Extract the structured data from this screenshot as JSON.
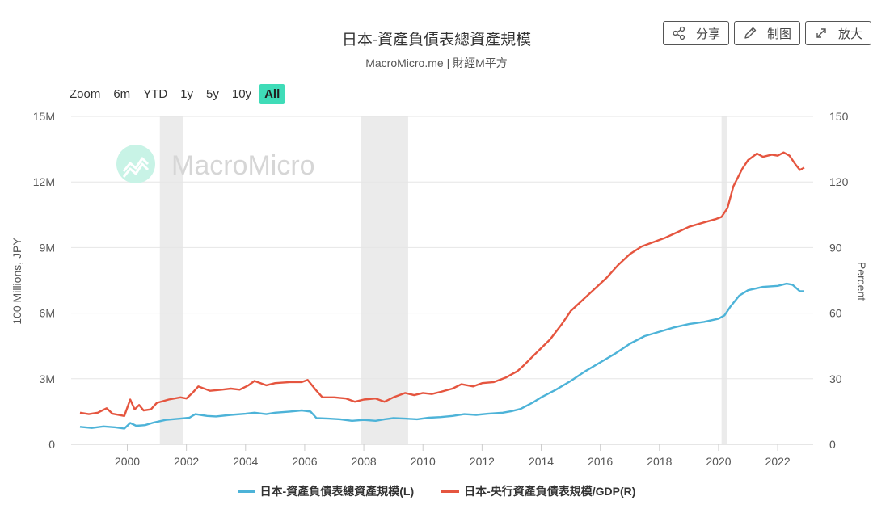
{
  "header": {
    "title": "日本-資產負債表總資產規模",
    "subtitle": "MacroMicro.me | 財經M平方"
  },
  "toolbar": {
    "share_label": "分享",
    "draw_label": "制图",
    "zoom_label": "放大"
  },
  "range_selector": {
    "label": "Zoom",
    "options": [
      "6m",
      "YTD",
      "1y",
      "5y",
      "10y",
      "All"
    ],
    "selected": "All"
  },
  "watermark": "MacroMicro",
  "colors": {
    "left_series": "#4db3d8",
    "right_series": "#e5553f",
    "recession": "#ebebeb",
    "accent": "#3fdcb8"
  },
  "chart_data": {
    "type": "line",
    "xlabel": "",
    "x_ticks": [
      "2000",
      "2002",
      "2004",
      "2006",
      "2008",
      "2010",
      "2012",
      "2014",
      "2016",
      "2018",
      "2020",
      "2022"
    ],
    "x_range": [
      1998.1,
      2023.2
    ],
    "y_left": {
      "label": "100 Millions, JPY",
      "ticks": [
        "0",
        "3M",
        "6M",
        "9M",
        "12M",
        "15M"
      ],
      "range": [
        0,
        15
      ]
    },
    "y_right": {
      "label": "Percent",
      "ticks": [
        "0",
        "30",
        "60",
        "90",
        "120",
        "150"
      ],
      "range": [
        0,
        150
      ]
    },
    "recession_bands": [
      [
        2001.1,
        2001.9
      ],
      [
        2007.9,
        2009.5
      ],
      [
        2020.1,
        2020.3
      ]
    ],
    "legend_position": "bottom-center",
    "grid": true,
    "series": [
      {
        "name": "日本-資產負債表總資產規模(L)",
        "axis": "left",
        "unit": "M (100 Millions JPY)",
        "points": [
          [
            1998.4,
            0.8
          ],
          [
            1998.8,
            0.75
          ],
          [
            1999.2,
            0.82
          ],
          [
            1999.6,
            0.78
          ],
          [
            1999.9,
            0.72
          ],
          [
            2000.1,
            0.98
          ],
          [
            2000.3,
            0.85
          ],
          [
            2000.6,
            0.88
          ],
          [
            2000.9,
            1.0
          ],
          [
            2001.3,
            1.12
          ],
          [
            2001.8,
            1.18
          ],
          [
            2002.1,
            1.22
          ],
          [
            2002.3,
            1.38
          ],
          [
            2002.7,
            1.3
          ],
          [
            2003.0,
            1.28
          ],
          [
            2003.5,
            1.35
          ],
          [
            2004.0,
            1.4
          ],
          [
            2004.3,
            1.45
          ],
          [
            2004.7,
            1.38
          ],
          [
            2005.0,
            1.45
          ],
          [
            2005.5,
            1.5
          ],
          [
            2005.9,
            1.55
          ],
          [
            2006.2,
            1.5
          ],
          [
            2006.4,
            1.2
          ],
          [
            2006.8,
            1.18
          ],
          [
            2007.2,
            1.15
          ],
          [
            2007.6,
            1.08
          ],
          [
            2008.0,
            1.12
          ],
          [
            2008.4,
            1.08
          ],
          [
            2008.7,
            1.15
          ],
          [
            2009.0,
            1.2
          ],
          [
            2009.4,
            1.18
          ],
          [
            2009.8,
            1.15
          ],
          [
            2010.2,
            1.22
          ],
          [
            2010.6,
            1.25
          ],
          [
            2011.0,
            1.3
          ],
          [
            2011.4,
            1.38
          ],
          [
            2011.8,
            1.35
          ],
          [
            2012.2,
            1.4
          ],
          [
            2012.7,
            1.45
          ],
          [
            2013.0,
            1.52
          ],
          [
            2013.3,
            1.62
          ],
          [
            2013.7,
            1.9
          ],
          [
            2014.0,
            2.15
          ],
          [
            2014.5,
            2.5
          ],
          [
            2015.0,
            2.9
          ],
          [
            2015.5,
            3.35
          ],
          [
            2016.0,
            3.75
          ],
          [
            2016.5,
            4.15
          ],
          [
            2017.0,
            4.6
          ],
          [
            2017.5,
            4.95
          ],
          [
            2018.0,
            5.15
          ],
          [
            2018.5,
            5.35
          ],
          [
            2019.0,
            5.5
          ],
          [
            2019.5,
            5.6
          ],
          [
            2020.0,
            5.75
          ],
          [
            2020.2,
            5.9
          ],
          [
            2020.4,
            6.3
          ],
          [
            2020.7,
            6.8
          ],
          [
            2021.0,
            7.05
          ],
          [
            2021.5,
            7.2
          ],
          [
            2022.0,
            7.25
          ],
          [
            2022.3,
            7.35
          ],
          [
            2022.5,
            7.3
          ],
          [
            2022.75,
            7.0
          ],
          [
            2022.9,
            7.0
          ]
        ]
      },
      {
        "name": "日本-央行資產負債表規模/GDP(R)",
        "axis": "right",
        "unit": "Percent",
        "points": [
          [
            1998.4,
            14.5
          ],
          [
            1998.7,
            13.8
          ],
          [
            1999.0,
            14.5
          ],
          [
            1999.3,
            16.5
          ],
          [
            1999.5,
            14.0
          ],
          [
            1999.9,
            13.0
          ],
          [
            2000.1,
            20.5
          ],
          [
            2000.25,
            16.0
          ],
          [
            2000.4,
            18.0
          ],
          [
            2000.55,
            15.5
          ],
          [
            2000.8,
            16.0
          ],
          [
            2001.0,
            19.0
          ],
          [
            2001.4,
            20.5
          ],
          [
            2001.8,
            21.5
          ],
          [
            2002.0,
            21.0
          ],
          [
            2002.2,
            23.5
          ],
          [
            2002.4,
            26.5
          ],
          [
            2002.8,
            24.5
          ],
          [
            2003.2,
            25.0
          ],
          [
            2003.5,
            25.5
          ],
          [
            2003.8,
            25.0
          ],
          [
            2004.1,
            27.0
          ],
          [
            2004.3,
            29.0
          ],
          [
            2004.7,
            27.0
          ],
          [
            2005.0,
            28.0
          ],
          [
            2005.5,
            28.5
          ],
          [
            2005.9,
            28.5
          ],
          [
            2006.1,
            29.5
          ],
          [
            2006.4,
            24.5
          ],
          [
            2006.6,
            21.5
          ],
          [
            2007.0,
            21.5
          ],
          [
            2007.4,
            21.0
          ],
          [
            2007.7,
            19.5
          ],
          [
            2008.0,
            20.5
          ],
          [
            2008.4,
            21.0
          ],
          [
            2008.7,
            19.5
          ],
          [
            2009.0,
            21.5
          ],
          [
            2009.4,
            23.5
          ],
          [
            2009.7,
            22.5
          ],
          [
            2010.0,
            23.5
          ],
          [
            2010.3,
            23.0
          ],
          [
            2010.6,
            24.0
          ],
          [
            2011.0,
            25.5
          ],
          [
            2011.3,
            27.5
          ],
          [
            2011.7,
            26.5
          ],
          [
            2012.0,
            28.0
          ],
          [
            2012.4,
            28.5
          ],
          [
            2012.8,
            30.5
          ],
          [
            2013.2,
            33.5
          ],
          [
            2013.4,
            36.0
          ],
          [
            2013.7,
            40.0
          ],
          [
            2014.0,
            44.0
          ],
          [
            2014.3,
            48.0
          ],
          [
            2014.7,
            55.0
          ],
          [
            2015.0,
            61.0
          ],
          [
            2015.4,
            66.0
          ],
          [
            2015.8,
            71.0
          ],
          [
            2016.2,
            76.0
          ],
          [
            2016.6,
            82.0
          ],
          [
            2017.0,
            87.0
          ],
          [
            2017.4,
            90.5
          ],
          [
            2017.8,
            92.5
          ],
          [
            2018.2,
            94.5
          ],
          [
            2018.6,
            97.0
          ],
          [
            2019.0,
            99.5
          ],
          [
            2019.5,
            101.5
          ],
          [
            2019.9,
            103.0
          ],
          [
            2020.1,
            104.0
          ],
          [
            2020.3,
            108.0
          ],
          [
            2020.5,
            118.0
          ],
          [
            2020.8,
            126.0
          ],
          [
            2021.0,
            130.0
          ],
          [
            2021.3,
            133.0
          ],
          [
            2021.5,
            131.5
          ],
          [
            2021.8,
            132.5
          ],
          [
            2022.0,
            132.0
          ],
          [
            2022.2,
            133.5
          ],
          [
            2022.4,
            132.0
          ],
          [
            2022.6,
            128.0
          ],
          [
            2022.75,
            125.5
          ],
          [
            2022.9,
            126.5
          ]
        ]
      }
    ]
  }
}
